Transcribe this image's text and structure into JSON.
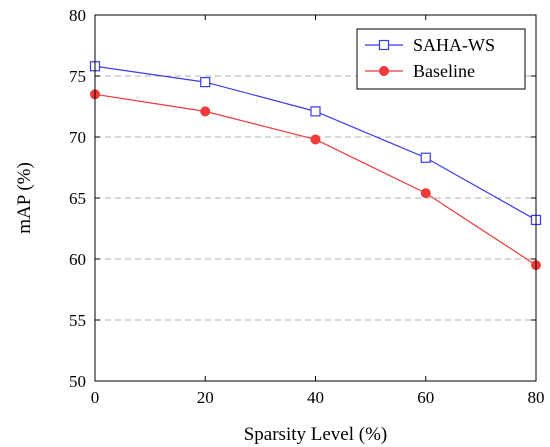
{
  "chart_data": {
    "type": "line",
    "xlabel": "Sparsity Level (%)",
    "ylabel": "mAP (%)",
    "x": [
      0,
      20,
      40,
      60,
      80
    ],
    "xlim": [
      0,
      80
    ],
    "ylim": [
      50,
      80
    ],
    "xticks": [
      0,
      20,
      40,
      60,
      80
    ],
    "yticks": [
      50,
      55,
      60,
      65,
      70,
      75,
      80
    ],
    "grid": "horizontal-dashed",
    "legend_position": "top-right",
    "series": [
      {
        "name": "SAHA-WS",
        "color": "#3a3af0",
        "marker": "open-square",
        "values": [
          75.8,
          74.5,
          72.1,
          68.3,
          63.2
        ]
      },
      {
        "name": "Baseline",
        "color": "#f03a3a",
        "marker": "filled-circle",
        "values": [
          73.5,
          72.1,
          69.8,
          65.4,
          59.5
        ]
      }
    ]
  }
}
